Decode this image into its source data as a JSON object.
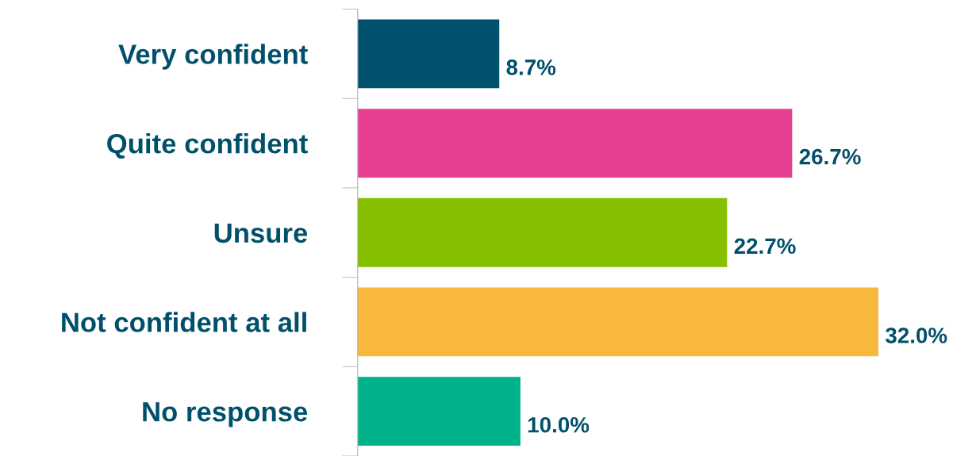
{
  "chart_data": {
    "type": "bar",
    "orientation": "horizontal",
    "categories": [
      "Very confident",
      "Quite confident",
      "Unsure",
      "Not confident at all",
      "No response"
    ],
    "values": [
      8.7,
      26.7,
      22.7,
      32.0,
      10.0
    ],
    "colors": [
      "#00516b",
      "#e63f92",
      "#85bf00",
      "#f7b83d",
      "#00b28a"
    ],
    "value_labels": [
      "8.7%",
      "26.7%",
      "22.7%",
      "32.0%",
      "10.0%"
    ],
    "grid": false,
    "legend": false
  }
}
